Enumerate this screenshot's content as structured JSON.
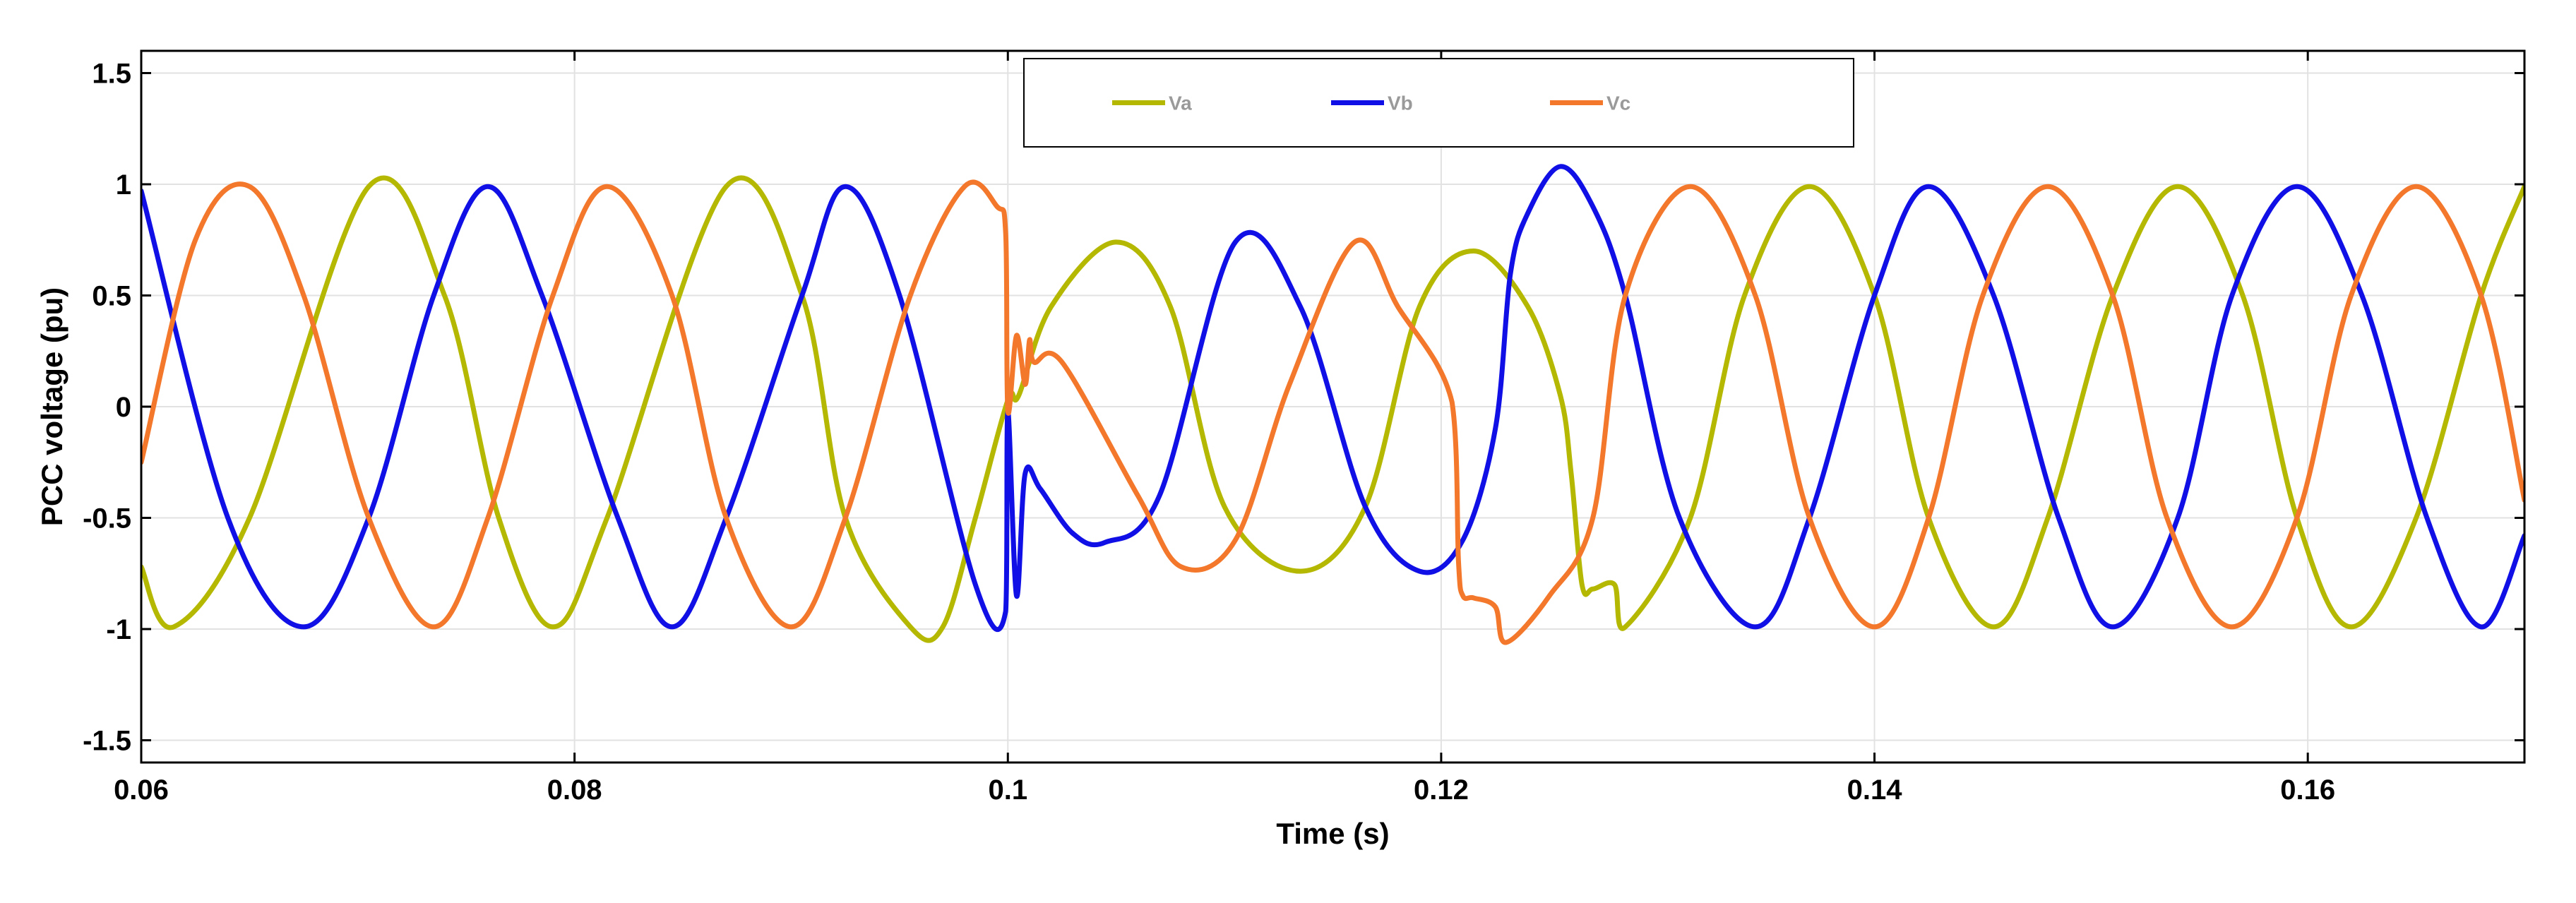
{
  "chart_data": {
    "type": "line",
    "title": "",
    "xlabel": "Time (s)",
    "ylabel": "PCC voltage (pu)",
    "xlim": [
      0.06,
      0.17
    ],
    "ylim": [
      -1.6,
      1.6
    ],
    "x_ticks": [
      0.06,
      0.08,
      0.1,
      0.12,
      0.14,
      0.16
    ],
    "x_tick_labels": [
      "0.06",
      "0.08",
      "0.1",
      "0.12",
      "0.14",
      "0.16"
    ],
    "y_ticks": [
      -1.5,
      -1,
      -0.5,
      0,
      0.5,
      1,
      1.5
    ],
    "y_tick_labels": [
      "-1.5",
      "-1",
      "-0.5",
      "0",
      "0.5",
      "1",
      "1.5"
    ],
    "grid": true,
    "legend_position": "top-center",
    "series": [
      {
        "name": "Va",
        "color": "#b5b800",
        "x": [
          0.06,
          0.0615,
          0.065,
          0.0705,
          0.074,
          0.0765,
          0.079,
          0.0815,
          0.087,
          0.0905,
          0.0925,
          0.0955,
          0.097,
          0.0985,
          0.1,
          0.1005,
          0.102,
          0.105,
          0.1075,
          0.11,
          0.1135,
          0.1165,
          0.119,
          0.1215,
          0.124,
          0.1255,
          0.126,
          0.1265,
          0.127,
          0.128,
          0.1285,
          0.1315,
          0.134,
          0.137,
          0.14,
          0.1425,
          0.1455,
          0.148,
          0.151,
          0.154,
          0.157,
          0.1595,
          0.162,
          0.165,
          0.168,
          0.17
        ],
        "y": [
          -0.72,
          -0.99,
          -0.5,
          0.99,
          0.5,
          -0.5,
          -0.99,
          -0.5,
          0.99,
          0.5,
          -0.5,
          -0.99,
          -0.99,
          -0.5,
          0.03,
          0.05,
          0.45,
          0.74,
          0.45,
          -0.45,
          -0.74,
          -0.45,
          0.45,
          0.7,
          0.45,
          0.05,
          -0.3,
          -0.8,
          -0.82,
          -0.8,
          -0.99,
          -0.5,
          0.5,
          0.99,
          0.5,
          -0.5,
          -0.99,
          -0.5,
          0.5,
          0.99,
          0.5,
          -0.5,
          -0.99,
          -0.5,
          0.5,
          0.99
        ]
      },
      {
        "name": "Vb",
        "color": "#1010e6",
        "x": [
          0.06,
          0.064,
          0.0675,
          0.0705,
          0.0735,
          0.076,
          0.0785,
          0.082,
          0.0845,
          0.087,
          0.0905,
          0.0925,
          0.095,
          0.0985,
          0.0999,
          0.1,
          0.1004,
          0.1008,
          0.1015,
          0.103,
          0.1045,
          0.107,
          0.1105,
          0.1135,
          0.1165,
          0.119,
          0.121,
          0.1225,
          0.1232,
          0.124,
          0.1255,
          0.127,
          0.1285,
          0.131,
          0.1345,
          0.137,
          0.14,
          0.1425,
          0.1455,
          0.1485,
          0.151,
          0.154,
          0.1565,
          0.1595,
          0.1625,
          0.1655,
          0.168,
          0.17
        ],
        "y": [
          0.97,
          -0.5,
          -0.99,
          -0.5,
          0.5,
          0.99,
          0.5,
          -0.5,
          -0.99,
          -0.5,
          0.5,
          0.99,
          0.5,
          -0.8,
          -0.92,
          -0.02,
          -0.85,
          -0.3,
          -0.37,
          -0.57,
          -0.61,
          -0.4,
          0.74,
          0.45,
          -0.45,
          -0.74,
          -0.6,
          -0.1,
          0.6,
          0.87,
          1.08,
          0.9,
          0.5,
          -0.5,
          -0.99,
          -0.5,
          0.5,
          0.99,
          0.5,
          -0.5,
          -0.99,
          -0.5,
          0.5,
          0.99,
          0.5,
          -0.5,
          -0.99,
          -0.58
        ]
      },
      {
        "name": "Vc",
        "color": "#f4782c",
        "x": [
          0.06,
          0.0625,
          0.065,
          0.0675,
          0.0705,
          0.0735,
          0.076,
          0.079,
          0.0815,
          0.0845,
          0.087,
          0.09,
          0.0925,
          0.0955,
          0.098,
          0.0995,
          0.0999,
          0.1,
          0.1004,
          0.1008,
          0.101,
          0.1012,
          0.1025,
          0.106,
          0.108,
          0.1105,
          0.113,
          0.116,
          0.118,
          0.1205,
          0.1208,
          0.121,
          0.1215,
          0.1225,
          0.123,
          0.125,
          0.127,
          0.1285,
          0.1315,
          0.1345,
          0.137,
          0.14,
          0.1425,
          0.145,
          0.148,
          0.151,
          0.1535,
          0.1565,
          0.1595,
          0.162,
          0.165,
          0.168,
          0.17
        ],
        "y": [
          -0.25,
          0.75,
          0.99,
          0.5,
          -0.5,
          -0.99,
          -0.5,
          0.5,
          0.99,
          0.5,
          -0.5,
          -0.99,
          -0.5,
          0.5,
          0.99,
          0.9,
          0.78,
          -0.02,
          0.32,
          0.1,
          0.3,
          0.2,
          0.2,
          -0.4,
          -0.72,
          -0.6,
          0.1,
          0.74,
          0.45,
          0.02,
          -0.7,
          -0.85,
          -0.86,
          -0.9,
          -1.06,
          -0.85,
          -0.5,
          0.5,
          0.99,
          0.5,
          -0.5,
          -0.99,
          -0.5,
          0.5,
          0.99,
          0.5,
          -0.5,
          -0.99,
          -0.5,
          0.5,
          0.99,
          0.5,
          -0.42
        ]
      }
    ]
  }
}
